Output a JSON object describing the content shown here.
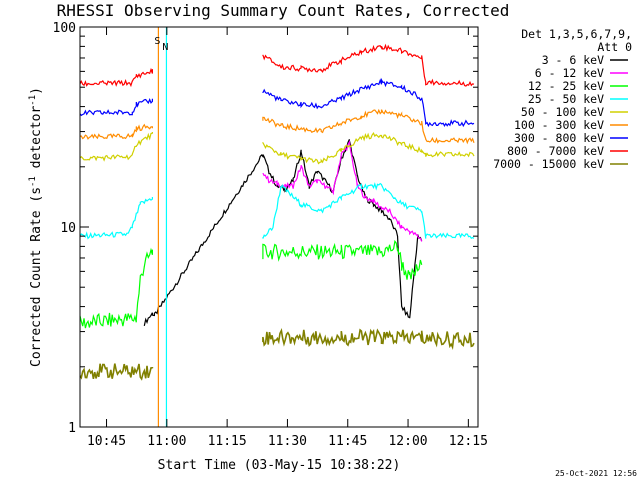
{
  "chart_data": {
    "type": "line",
    "title": "RHESSI Observing Summary Count Rates, Corrected",
    "xlabel": "Start Time (03-May-15 10:38:22)",
    "ylabel": "Corrected Count Rate (s⁻¹ detector⁻¹)",
    "ylabel_parts": {
      "main": "Corrected Count Rate (s",
      "sup1": "-1",
      "mid": " detector",
      "sup2": "-1",
      "end": ")"
    },
    "y_scale": "log",
    "ylim": [
      1,
      100
    ],
    "xlim_minutes": [
      0,
      99
    ],
    "x_ticks": [
      {
        "label": "10:45",
        "t": 6.6
      },
      {
        "label": "11:00",
        "t": 21.6
      },
      {
        "label": "11:15",
        "t": 36.6
      },
      {
        "label": "11:30",
        "t": 51.6
      },
      {
        "label": "11:45",
        "t": 66.6
      },
      {
        "label": "12:00",
        "t": 81.6
      },
      {
        "label": "12:15",
        "t": 96.6
      }
    ],
    "y_tick_labels": [
      {
        "label": "1",
        "v": 1
      },
      {
        "label": "10",
        "v": 10
      },
      {
        "label": "100",
        "v": 100
      }
    ],
    "legend_header": [
      "Det 1,3,5,6,7,9,",
      "Att 0"
    ],
    "legend_position": "right",
    "series": [
      {
        "name": "3 - 6 keV",
        "color": "#000000",
        "values": [
          [
            16,
            3.3
          ],
          [
            18,
            3.7
          ],
          [
            18.5,
            3.6
          ],
          [
            45.5,
            23
          ],
          [
            47,
            19
          ],
          [
            49,
            16
          ],
          [
            51,
            15.5
          ],
          [
            53,
            17
          ],
          [
            55,
            24
          ],
          [
            57,
            16
          ],
          [
            59,
            19
          ],
          [
            61,
            17
          ],
          [
            63,
            15
          ],
          [
            65,
            22
          ],
          [
            67,
            27
          ],
          [
            69,
            18
          ],
          [
            71,
            14
          ],
          [
            73,
            13
          ],
          [
            75,
            12
          ],
          [
            77,
            11
          ],
          [
            79,
            9
          ],
          [
            80,
            4
          ],
          [
            82,
            3.5
          ],
          [
            84,
            9
          ],
          [
            85,
            8.5
          ]
        ]
      },
      {
        "name": "6 - 12 keV",
        "color": "#ff00ff",
        "values": [
          [
            45.5,
            19
          ],
          [
            47,
            17
          ],
          [
            49,
            16.5
          ],
          [
            51,
            16
          ],
          [
            53,
            16
          ],
          [
            55,
            20
          ],
          [
            57,
            16
          ],
          [
            59,
            17
          ],
          [
            61,
            16
          ],
          [
            63,
            15
          ],
          [
            65,
            23
          ],
          [
            67,
            26
          ],
          [
            69,
            16
          ],
          [
            71,
            14
          ],
          [
            73,
            13.5
          ],
          [
            75,
            12.5
          ],
          [
            77,
            12
          ],
          [
            79,
            10.5
          ],
          [
            80,
            10
          ],
          [
            82,
            9.5
          ],
          [
            84,
            9
          ],
          [
            85,
            8.6
          ]
        ]
      },
      {
        "name": "12 - 25 keV",
        "color": "#00ff00",
        "values": [
          [
            0,
            3.3
          ],
          [
            14,
            3.5
          ],
          [
            15,
            5.5
          ],
          [
            16,
            6.5
          ],
          [
            18,
            7.5
          ],
          [
            45.5,
            7.5
          ],
          [
            55,
            7.5
          ],
          [
            65,
            7.5
          ],
          [
            75,
            7.5
          ],
          [
            79,
            8
          ],
          [
            80,
            6.5
          ],
          [
            82,
            5.5
          ],
          [
            85,
            6.5
          ]
        ]
      },
      {
        "name": "25 - 50 keV",
        "color": "#00ffff",
        "values": [
          [
            0,
            9
          ],
          [
            12,
            9.2
          ],
          [
            13,
            10
          ],
          [
            15,
            13
          ],
          [
            18,
            14
          ],
          [
            45.5,
            8.8
          ],
          [
            48,
            10
          ],
          [
            50,
            16
          ],
          [
            55,
            13
          ],
          [
            60,
            12
          ],
          [
            65,
            14
          ],
          [
            70,
            16
          ],
          [
            75,
            16
          ],
          [
            80,
            13
          ],
          [
            85,
            12
          ],
          [
            86,
            9
          ],
          [
            98,
            9
          ]
        ]
      },
      {
        "name": "50 - 100 keV",
        "color": "#d0d000",
        "values": [
          [
            0,
            22
          ],
          [
            13,
            22.5
          ],
          [
            14,
            26
          ],
          [
            18,
            29
          ],
          [
            45.5,
            26
          ],
          [
            50,
            23
          ],
          [
            55,
            22
          ],
          [
            60,
            21
          ],
          [
            65,
            24
          ],
          [
            70,
            28
          ],
          [
            75,
            29
          ],
          [
            80,
            26
          ],
          [
            85,
            24
          ],
          [
            86,
            23
          ],
          [
            98,
            23
          ]
        ]
      },
      {
        "name": "100 - 300 keV",
        "color": "#ff8c00",
        "values": [
          [
            0,
            28
          ],
          [
            13,
            28.5
          ],
          [
            14,
            31
          ],
          [
            18,
            32
          ],
          [
            45.5,
            35
          ],
          [
            50,
            32
          ],
          [
            55,
            31
          ],
          [
            60,
            30
          ],
          [
            65,
            33
          ],
          [
            70,
            36
          ],
          [
            75,
            38
          ],
          [
            80,
            36
          ],
          [
            85,
            33
          ],
          [
            86,
            27
          ],
          [
            98,
            27
          ]
        ]
      },
      {
        "name": "300 - 800 keV",
        "color": "#0000ff",
        "values": [
          [
            0,
            37
          ],
          [
            13,
            37.5
          ],
          [
            14,
            41
          ],
          [
            18,
            43
          ],
          [
            45.5,
            48
          ],
          [
            50,
            43
          ],
          [
            55,
            41
          ],
          [
            60,
            40
          ],
          [
            65,
            44
          ],
          [
            70,
            49
          ],
          [
            75,
            53
          ],
          [
            80,
            50
          ],
          [
            85,
            44
          ],
          [
            86,
            33
          ],
          [
            98,
            33
          ]
        ]
      },
      {
        "name": "800 - 7000 keV",
        "color": "#ff0000",
        "values": [
          [
            0,
            52
          ],
          [
            13,
            52.5
          ],
          [
            14,
            57
          ],
          [
            18,
            60
          ],
          [
            45.5,
            72
          ],
          [
            50,
            63
          ],
          [
            55,
            62
          ],
          [
            60,
            61
          ],
          [
            65,
            68
          ],
          [
            70,
            75
          ],
          [
            75,
            80
          ],
          [
            80,
            76
          ],
          [
            85,
            70
          ],
          [
            86,
            53
          ],
          [
            98,
            52
          ]
        ]
      },
      {
        "name": "7000 - 15000 keV",
        "color": "#808000",
        "values": [
          [
            0,
            1.9
          ],
          [
            18,
            1.9
          ],
          [
            45.5,
            2.8
          ],
          [
            55,
            2.8
          ],
          [
            65,
            2.8
          ],
          [
            75,
            2.8
          ],
          [
            85,
            2.8
          ],
          [
            98,
            2.7
          ]
        ]
      }
    ],
    "markers": [
      {
        "label": "S",
        "t": 19.5,
        "color": "#ff8c00"
      },
      {
        "label": "N",
        "t": 21.5,
        "color": "#00ffff"
      }
    ]
  },
  "timestamp": "25-Oct-2021 12:56"
}
